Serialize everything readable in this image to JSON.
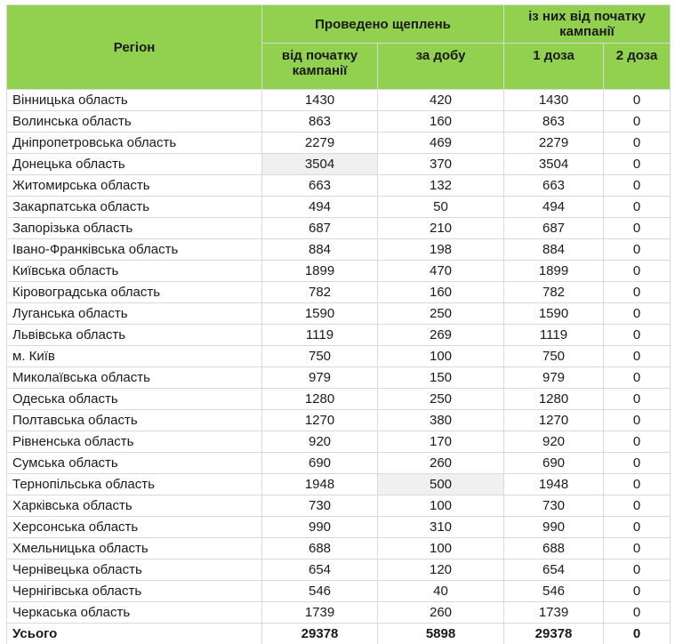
{
  "colors": {
    "header_bg": "#92D050",
    "highlight_bg": "#F0F0F0",
    "grid_line": "#D9D9D9",
    "total_border": "#595959",
    "text": "#1A1A1A"
  },
  "header": {
    "region_label": "Регіон",
    "group_vaccinations": "Проведено щеплень",
    "col_since_start": "від початку кампанії",
    "col_per_day": "за добу",
    "group_campaign": "із них від початку кампанії",
    "col_dose1": "1 доза",
    "col_dose2": "2 доза"
  },
  "rows": [
    {
      "region": "Вінницька область",
      "values": [
        1430,
        420,
        1430,
        0
      ],
      "highlight_col": null
    },
    {
      "region": "Волинська область",
      "values": [
        863,
        160,
        863,
        0
      ],
      "highlight_col": null
    },
    {
      "region": "Дніпропетровська область",
      "values": [
        2279,
        469,
        2279,
        0
      ],
      "highlight_col": null
    },
    {
      "region": "Донецька область",
      "values": [
        3504,
        370,
        3504,
        0
      ],
      "highlight_col": 0
    },
    {
      "region": "Житомирська область",
      "values": [
        663,
        132,
        663,
        0
      ],
      "highlight_col": null
    },
    {
      "region": "Закарпатська область",
      "values": [
        494,
        50,
        494,
        0
      ],
      "highlight_col": null
    },
    {
      "region": "Запорізька область",
      "values": [
        687,
        210,
        687,
        0
      ],
      "highlight_col": null
    },
    {
      "region": "Івано-Франківська область",
      "values": [
        884,
        198,
        884,
        0
      ],
      "highlight_col": null
    },
    {
      "region": "Київська область",
      "values": [
        1899,
        470,
        1899,
        0
      ],
      "highlight_col": null
    },
    {
      "region": "Кіровоградська область",
      "values": [
        782,
        160,
        782,
        0
      ],
      "highlight_col": null
    },
    {
      "region": "Луганська область",
      "values": [
        1590,
        250,
        1590,
        0
      ],
      "highlight_col": null
    },
    {
      "region": "Львівська область",
      "values": [
        1119,
        269,
        1119,
        0
      ],
      "highlight_col": null
    },
    {
      "region": "м. Київ",
      "values": [
        750,
        100,
        750,
        0
      ],
      "highlight_col": null
    },
    {
      "region": "Миколаївська область",
      "values": [
        979,
        150,
        979,
        0
      ],
      "highlight_col": null
    },
    {
      "region": "Одеська область",
      "values": [
        1280,
        250,
        1280,
        0
      ],
      "highlight_col": null
    },
    {
      "region": "Полтавська область",
      "values": [
        1270,
        380,
        1270,
        0
      ],
      "highlight_col": null
    },
    {
      "region": "Рівненська область",
      "values": [
        920,
        170,
        920,
        0
      ],
      "highlight_col": null
    },
    {
      "region": "Сумська область",
      "values": [
        690,
        260,
        690,
        0
      ],
      "highlight_col": null
    },
    {
      "region": "Тернопільська область",
      "values": [
        1948,
        500,
        1948,
        0
      ],
      "highlight_col": 1
    },
    {
      "region": "Харківська область",
      "values": [
        730,
        100,
        730,
        0
      ],
      "highlight_col": null
    },
    {
      "region": "Херсонська область",
      "values": [
        990,
        310,
        990,
        0
      ],
      "highlight_col": null
    },
    {
      "region": "Хмельницька область",
      "values": [
        688,
        100,
        688,
        0
      ],
      "highlight_col": null
    },
    {
      "region": "Чернівецька область",
      "values": [
        654,
        120,
        654,
        0
      ],
      "highlight_col": null
    },
    {
      "region": "Чернігівська область",
      "values": [
        546,
        40,
        546,
        0
      ],
      "highlight_col": null
    },
    {
      "region": "Черкаська область",
      "values": [
        1739,
        260,
        1739,
        0
      ],
      "highlight_col": null
    }
  ],
  "total_row": {
    "label": "Усього",
    "values": [
      29378,
      5898,
      29378,
      0
    ]
  }
}
